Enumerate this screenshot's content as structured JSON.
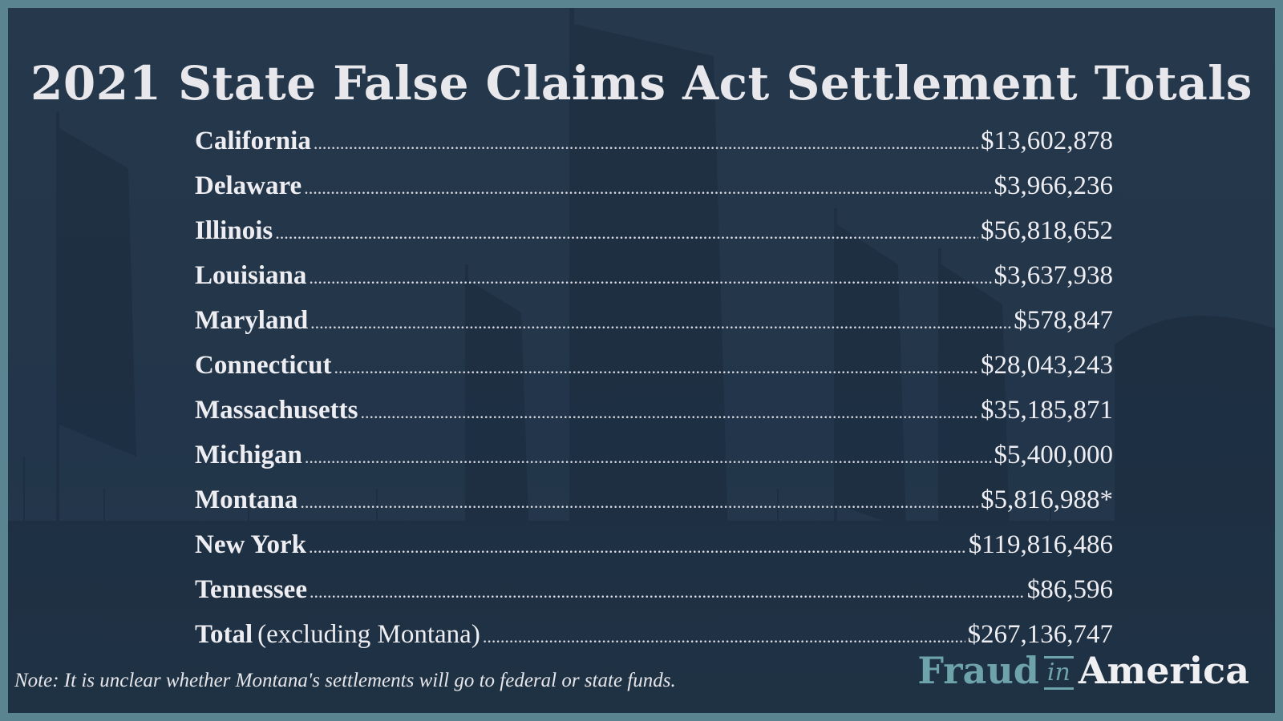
{
  "title": "2021 State False Claims Act Settlement Totals",
  "rows": [
    {
      "state": "California",
      "amount": "$13,602,878"
    },
    {
      "state": "Delaware",
      "amount": "$3,966,236"
    },
    {
      "state": "Illinois",
      "amount": "$56,818,652"
    },
    {
      "state": "Louisiana",
      "amount": "$3,637,938"
    },
    {
      "state": "Maryland",
      "amount": "$578,847"
    },
    {
      "state": "Connecticut",
      "amount": "$28,043,243"
    },
    {
      "state": "Massachusetts",
      "amount": "$35,185,871"
    },
    {
      "state": "Michigan",
      "amount": "$5,400,000"
    },
    {
      "state": "Montana",
      "amount": "$5,816,988*"
    },
    {
      "state": "New York",
      "amount": "$119,816,486"
    },
    {
      "state": "Tennessee",
      "amount": "$86,596"
    }
  ],
  "total": {
    "label": "Total",
    "qualifier": "(excluding Montana)",
    "amount": "$267,136,747"
  },
  "note": "Note: It is unclear whether Montana's settlements will go to federal or state funds.",
  "logo": {
    "part1": "Fraud",
    "part2": "in",
    "part3": "America"
  },
  "colors": {
    "background": "#26384b",
    "frame": "#5a8590",
    "logo_accent": "#6fa3ac",
    "text": "#eeeef2"
  }
}
